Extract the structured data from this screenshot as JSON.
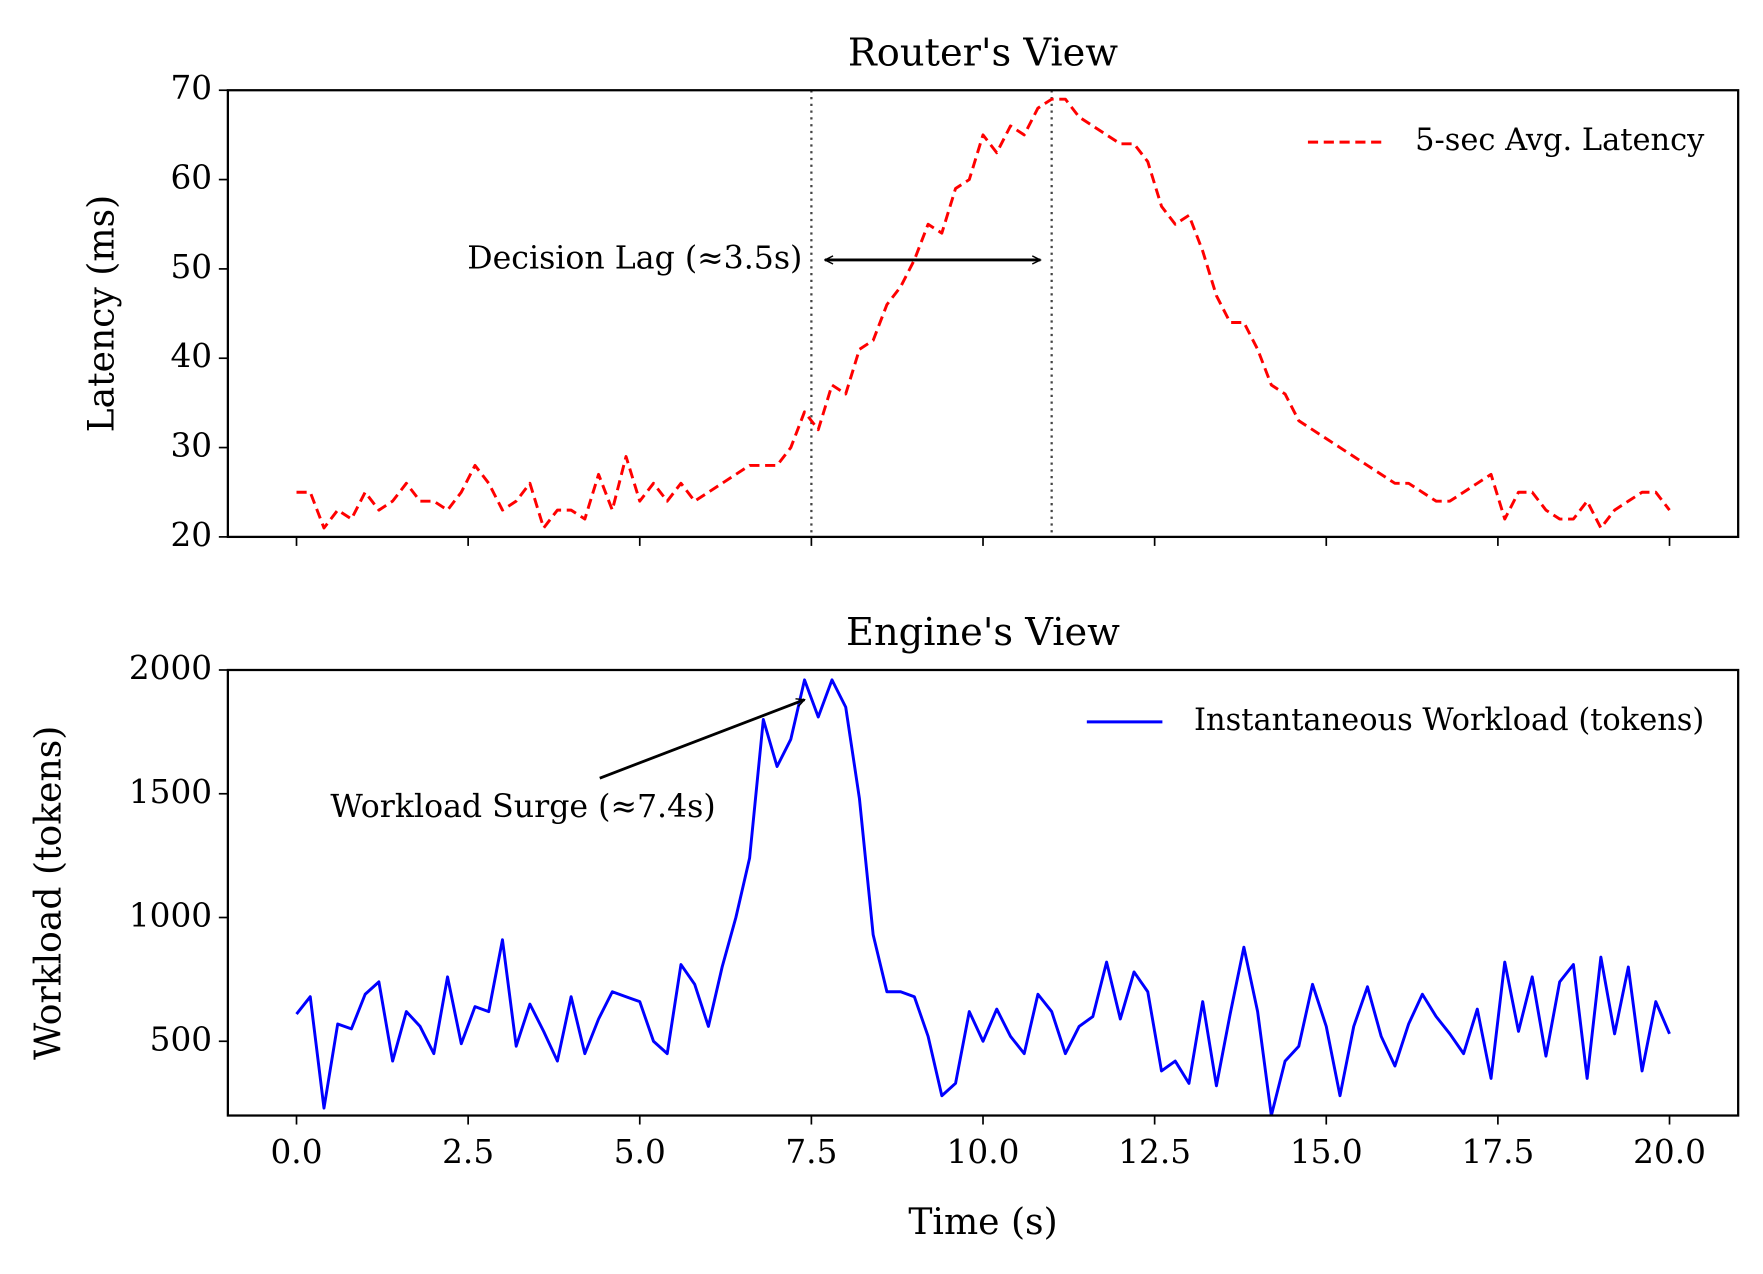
{
  "chart_data": [
    {
      "type": "line",
      "title": "Router's View",
      "ylabel": "Latency (ms)",
      "xlim": [
        -1,
        21
      ],
      "ylim": [
        20,
        70
      ],
      "yticks": [
        20,
        30,
        40,
        50,
        60,
        70
      ],
      "x": [
        0,
        0.2,
        0.4,
        0.6,
        0.8,
        1,
        1.2,
        1.4,
        1.6,
        1.8,
        2,
        2.2,
        2.4,
        2.6,
        2.8,
        3,
        3.2,
        3.4,
        3.6,
        3.8,
        4,
        4.2,
        4.4,
        4.6,
        4.8,
        5,
        5.2,
        5.4,
        5.6,
        5.8,
        6,
        6.2,
        6.4,
        6.6,
        6.8,
        7,
        7.2,
        7.4,
        7.6,
        7.8,
        8,
        8.2,
        8.4,
        8.6,
        8.8,
        9,
        9.2,
        9.4,
        9.6,
        9.8,
        10,
        10.2,
        10.4,
        10.6,
        10.8,
        11,
        11.2,
        11.4,
        11.6,
        11.8,
        12,
        12.2,
        12.4,
        12.6,
        12.8,
        13,
        13.2,
        13.4,
        13.6,
        13.8,
        14,
        14.2,
        14.4,
        14.6,
        14.8,
        15,
        15.2,
        15.4,
        15.6,
        15.8,
        16,
        16.2,
        16.4,
        16.6,
        16.8,
        17,
        17.2,
        17.4,
        17.6,
        17.8,
        18,
        18.2,
        18.4,
        18.6,
        18.8,
        19,
        19.2,
        19.4,
        19.6,
        19.8,
        20
      ],
      "series": [
        {
          "name": "5-sec Avg. Latency",
          "color": "#ff0000",
          "dashed": true,
          "values": [
            25,
            25,
            21,
            23,
            22,
            25,
            23,
            24,
            26,
            24,
            24,
            23,
            25,
            28,
            26,
            23,
            24,
            26,
            21,
            23,
            23,
            22,
            27,
            23,
            29,
            24,
            26,
            24,
            26,
            24,
            25,
            26,
            27,
            28,
            28,
            28,
            30,
            34,
            32,
            37,
            36,
            41,
            42,
            46,
            48,
            51,
            55,
            54,
            59,
            60,
            65,
            63,
            66,
            65,
            68,
            69,
            69,
            67,
            66,
            65,
            64,
            64,
            62,
            57,
            55,
            56,
            52,
            47,
            44,
            44,
            41,
            37,
            36,
            33,
            32,
            31,
            30,
            29,
            28,
            27,
            26,
            26,
            25,
            24,
            24,
            25,
            26,
            27,
            22,
            25,
            25,
            23,
            22,
            22,
            24,
            21,
            23,
            24,
            25,
            25,
            23
          ]
        }
      ],
      "vlines": [
        7.5,
        11.0
      ],
      "annotation": {
        "text": "Decision Lag (≈3.5s)",
        "xy": [
          11.0,
          51
        ],
        "xytext": [
          7.5,
          51
        ]
      },
      "legend": "upper right"
    },
    {
      "type": "line",
      "title": "Engine's View",
      "ylabel": "Workload (tokens)",
      "xlabel": "Time (s)",
      "xlim": [
        -1,
        21
      ],
      "ylim": [
        200,
        2000
      ],
      "yticks": [
        500,
        1000,
        1500,
        2000
      ],
      "xticks": [
        {
          "value": 0,
          "label": "0.0"
        },
        2.5,
        {
          "value": 5,
          "label": "5.0"
        },
        7.5,
        {
          "value": 10,
          "label": "10.0"
        },
        12.5,
        {
          "value": 15,
          "label": "15.0"
        },
        17.5,
        {
          "value": 20,
          "label": "20.0"
        }
      ],
      "x": [
        0,
        0.2,
        0.4,
        0.6,
        0.8,
        1,
        1.2,
        1.4,
        1.6,
        1.8,
        2,
        2.2,
        2.4,
        2.6,
        2.8,
        3,
        3.2,
        3.4,
        3.6,
        3.8,
        4,
        4.2,
        4.4,
        4.6,
        4.8,
        5,
        5.2,
        5.4,
        5.6,
        5.8,
        6,
        6.2,
        6.4,
        6.6,
        6.8,
        7,
        7.2,
        7.4,
        7.6,
        7.8,
        8,
        8.2,
        8.4,
        8.6,
        8.8,
        9,
        9.2,
        9.4,
        9.6,
        9.8,
        10,
        10.2,
        10.4,
        10.6,
        10.8,
        11,
        11.2,
        11.4,
        11.6,
        11.8,
        12,
        12.2,
        12.4,
        12.6,
        12.8,
        13,
        13.2,
        13.4,
        13.6,
        13.8,
        14,
        14.2,
        14.4,
        14.6,
        14.8,
        15,
        15.2,
        15.4,
        15.6,
        15.8,
        16,
        16.2,
        16.4,
        16.6,
        16.8,
        17,
        17.2,
        17.4,
        17.6,
        17.8,
        18,
        18.2,
        18.4,
        18.6,
        18.8,
        19,
        19.2,
        19.4,
        19.6,
        19.8,
        20
      ],
      "series": [
        {
          "name": "Instantaneous Workload (tokens)",
          "color": "#0000ff",
          "dashed": false,
          "values": [
            610,
            680,
            230,
            570,
            550,
            690,
            740,
            420,
            620,
            560,
            450,
            760,
            490,
            640,
            620,
            910,
            480,
            650,
            540,
            420,
            680,
            450,
            590,
            700,
            680,
            660,
            500,
            450,
            810,
            730,
            560,
            800,
            1000,
            1240,
            1800,
            1610,
            1720,
            1960,
            1810,
            1960,
            1850,
            1480,
            930,
            700,
            700,
            680,
            520,
            280,
            330,
            620,
            500,
            630,
            520,
            450,
            690,
            620,
            450,
            560,
            600,
            820,
            590,
            780,
            700,
            380,
            420,
            330,
            660,
            320,
            610,
            880,
            620,
            200,
            420,
            480,
            730,
            560,
            280,
            560,
            720,
            520,
            400,
            570,
            690,
            600,
            530,
            450,
            630,
            350,
            820,
            540,
            760,
            440,
            740,
            810,
            350,
            840,
            530,
            800,
            380,
            660,
            530
          ]
        }
      ],
      "annotation": {
        "text": "Workload Surge (≈7.4s)",
        "xy": [
          7.4,
          1880
        ],
        "xytext": [
          3.3,
          1440
        ]
      },
      "legend": "upper right"
    }
  ]
}
